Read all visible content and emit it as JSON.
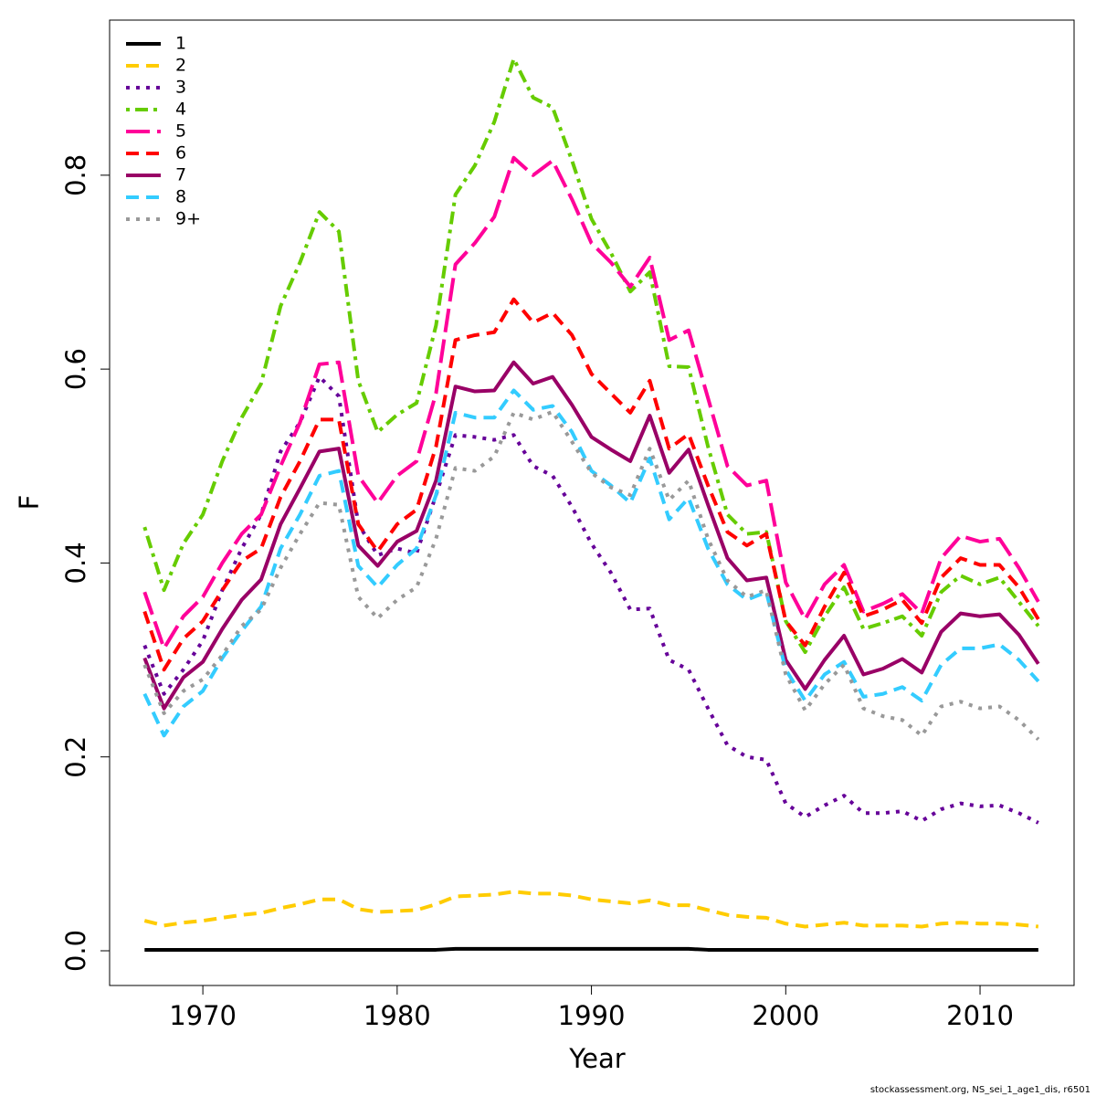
{
  "chart_data": {
    "type": "line",
    "xlabel": "Year",
    "ylabel": "F",
    "footnote": "stockassessment.org, NS_sei_1_age1_dis, r6501",
    "x": [
      1967,
      1968,
      1969,
      1970,
      1971,
      1972,
      1973,
      1974,
      1975,
      1976,
      1977,
      1978,
      1979,
      1980,
      1981,
      1982,
      1983,
      1984,
      1985,
      1986,
      1987,
      1988,
      1989,
      1990,
      1991,
      1992,
      1993,
      1994,
      1995,
      1996,
      1997,
      1998,
      1999,
      2000,
      2001,
      2002,
      2003,
      2004,
      2005,
      2006,
      2007,
      2008,
      2009,
      2010,
      2011,
      2012,
      2013
    ],
    "xlim": [
      1965.2,
      2014.84
    ],
    "xticks": [
      1970,
      1980,
      1990,
      2000,
      2010
    ],
    "ylim": [
      -0.0358,
      0.96
    ],
    "yticks": [
      {
        "value": 0,
        "label": "0.0"
      },
      0.2,
      0.4,
      0.6,
      0.8
    ],
    "legend": "top-left",
    "series": [
      {
        "name": "1",
        "color": "#000000",
        "linestyle": "solid",
        "values": [
          0.001,
          0.001,
          0.001,
          0.001,
          0.001,
          0.001,
          0.001,
          0.001,
          0.001,
          0.001,
          0.001,
          0.001,
          0.001,
          0.001,
          0.001,
          0.001,
          0.002,
          0.002,
          0.002,
          0.002,
          0.002,
          0.002,
          0.002,
          0.002,
          0.002,
          0.002,
          0.002,
          0.002,
          0.002,
          0.001,
          0.001,
          0.001,
          0.001,
          0.001,
          0.001,
          0.001,
          0.001,
          0.001,
          0.001,
          0.001,
          0.001,
          0.001,
          0.001,
          0.001,
          0.001,
          0.001,
          0.001
        ]
      },
      {
        "name": "2",
        "color": "#ffcc00",
        "linestyle": "dashed",
        "values": [
          0.031,
          0.026,
          0.029,
          0.031,
          0.034,
          0.037,
          0.039,
          0.044,
          0.048,
          0.053,
          0.053,
          0.043,
          0.04,
          0.041,
          0.042,
          0.048,
          0.056,
          0.057,
          0.058,
          0.061,
          0.059,
          0.059,
          0.057,
          0.053,
          0.051,
          0.049,
          0.052,
          0.047,
          0.047,
          0.042,
          0.037,
          0.035,
          0.034,
          0.028,
          0.025,
          0.027,
          0.029,
          0.026,
          0.026,
          0.026,
          0.025,
          0.028,
          0.029,
          0.028,
          0.028,
          0.027,
          0.025
        ]
      },
      {
        "name": "3",
        "color": "#660099",
        "linestyle": "dotted",
        "values": [
          0.315,
          0.265,
          0.29,
          0.32,
          0.372,
          0.415,
          0.45,
          0.515,
          0.545,
          0.592,
          0.572,
          0.44,
          0.408,
          0.415,
          0.41,
          0.47,
          0.532,
          0.53,
          0.527,
          0.532,
          0.5,
          0.49,
          0.458,
          0.42,
          0.39,
          0.352,
          0.353,
          0.3,
          0.29,
          0.25,
          0.212,
          0.2,
          0.197,
          0.152,
          0.138,
          0.15,
          0.16,
          0.142,
          0.142,
          0.144,
          0.134,
          0.146,
          0.152,
          0.149,
          0.15,
          0.142,
          0.132
        ]
      },
      {
        "name": "4",
        "color": "#66cc00",
        "linestyle": "dotdash",
        "values": [
          0.437,
          0.372,
          0.42,
          0.45,
          0.505,
          0.55,
          0.585,
          0.665,
          0.71,
          0.762,
          0.742,
          0.588,
          0.535,
          0.553,
          0.565,
          0.645,
          0.78,
          0.81,
          0.855,
          0.92,
          0.88,
          0.87,
          0.815,
          0.755,
          0.72,
          0.68,
          0.7,
          0.603,
          0.602,
          0.52,
          0.45,
          0.43,
          0.432,
          0.34,
          0.308,
          0.345,
          0.375,
          0.332,
          0.338,
          0.345,
          0.325,
          0.37,
          0.387,
          0.378,
          0.385,
          0.36,
          0.335
        ]
      },
      {
        "name": "5",
        "color": "#ff0099",
        "linestyle": "longdash",
        "values": [
          0.37,
          0.312,
          0.345,
          0.365,
          0.4,
          0.43,
          0.45,
          0.5,
          0.545,
          0.605,
          0.607,
          0.49,
          0.462,
          0.49,
          0.505,
          0.575,
          0.708,
          0.73,
          0.757,
          0.818,
          0.8,
          0.815,
          0.775,
          0.73,
          0.71,
          0.685,
          0.715,
          0.63,
          0.64,
          0.57,
          0.5,
          0.48,
          0.485,
          0.38,
          0.342,
          0.378,
          0.398,
          0.35,
          0.358,
          0.368,
          0.348,
          0.405,
          0.428,
          0.422,
          0.425,
          0.395,
          0.36
        ]
      },
      {
        "name": "6",
        "color": "#ff0000",
        "linestyle": "dashed",
        "values": [
          0.35,
          0.29,
          0.322,
          0.34,
          0.372,
          0.402,
          0.415,
          0.468,
          0.505,
          0.548,
          0.548,
          0.44,
          0.412,
          0.44,
          0.455,
          0.52,
          0.63,
          0.635,
          0.638,
          0.672,
          0.648,
          0.658,
          0.635,
          0.595,
          0.575,
          0.555,
          0.588,
          0.518,
          0.533,
          0.48,
          0.432,
          0.418,
          0.43,
          0.34,
          0.315,
          0.355,
          0.39,
          0.345,
          0.352,
          0.362,
          0.338,
          0.385,
          0.405,
          0.398,
          0.398,
          0.375,
          0.342
        ]
      },
      {
        "name": "7",
        "color": "#990066",
        "linestyle": "solid",
        "values": [
          0.302,
          0.25,
          0.282,
          0.298,
          0.332,
          0.362,
          0.383,
          0.44,
          0.477,
          0.515,
          0.518,
          0.418,
          0.397,
          0.422,
          0.433,
          0.485,
          0.582,
          0.577,
          0.578,
          0.607,
          0.585,
          0.592,
          0.563,
          0.53,
          0.517,
          0.505,
          0.552,
          0.493,
          0.517,
          0.46,
          0.405,
          0.382,
          0.385,
          0.3,
          0.27,
          0.3,
          0.325,
          0.285,
          0.291,
          0.301,
          0.287,
          0.329,
          0.348,
          0.345,
          0.347,
          0.326,
          0.296
        ]
      },
      {
        "name": "8",
        "color": "#33ccff",
        "linestyle": "dashed",
        "values": [
          0.265,
          0.222,
          0.252,
          0.268,
          0.302,
          0.33,
          0.355,
          0.415,
          0.45,
          0.49,
          0.495,
          0.397,
          0.375,
          0.398,
          0.415,
          0.47,
          0.555,
          0.55,
          0.55,
          0.578,
          0.558,
          0.562,
          0.535,
          0.495,
          0.48,
          0.462,
          0.508,
          0.445,
          0.467,
          0.415,
          0.378,
          0.362,
          0.37,
          0.29,
          0.258,
          0.285,
          0.298,
          0.262,
          0.265,
          0.272,
          0.258,
          0.295,
          0.312,
          0.312,
          0.316,
          0.3,
          0.278
        ]
      },
      {
        "name": "9+",
        "color": "#999999",
        "linestyle": "dotted",
        "values": [
          0.295,
          0.245,
          0.268,
          0.28,
          0.305,
          0.335,
          0.352,
          0.395,
          0.43,
          0.462,
          0.46,
          0.365,
          0.343,
          0.362,
          0.375,
          0.425,
          0.498,
          0.495,
          0.51,
          0.555,
          0.548,
          0.556,
          0.525,
          0.493,
          0.478,
          0.47,
          0.518,
          0.465,
          0.485,
          0.425,
          0.382,
          0.365,
          0.372,
          0.285,
          0.248,
          0.275,
          0.295,
          0.25,
          0.242,
          0.238,
          0.222,
          0.252,
          0.257,
          0.25,
          0.252,
          0.238,
          0.218
        ]
      }
    ]
  }
}
